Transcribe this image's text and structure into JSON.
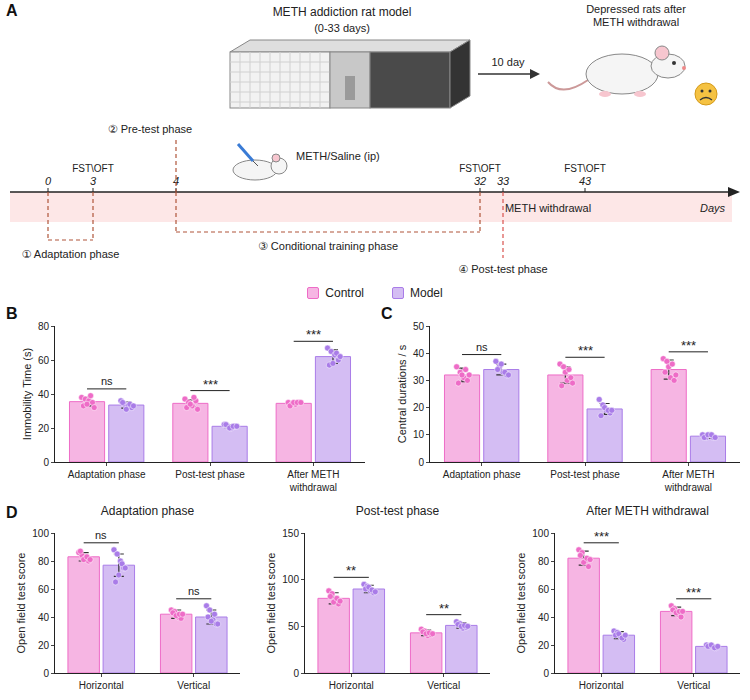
{
  "diagram": {
    "panel": "A",
    "model": {
      "title": "METH addiction rat model",
      "subtitle": "(0-33 days)"
    },
    "transition": "10 day",
    "outcome": "Depressed rats after METH withdrawal",
    "injection": "METH/Saline (ip)",
    "timeline": {
      "unit": "Days",
      "ticks": [
        0,
        3,
        4,
        32,
        33,
        43
      ]
    },
    "tests": [
      {
        "label": "FST\\OFT",
        "day": 3
      },
      {
        "label": "FST\\OFT",
        "day": 32
      },
      {
        "label": "FST\\OFT",
        "day": 43
      }
    ],
    "phases": [
      {
        "label": "① Adaptation phase",
        "from": 0,
        "to": 3
      },
      {
        "label": "② Pre-test phase",
        "from": 4,
        "to": 4
      },
      {
        "label": "③ Conditional training phase",
        "from": 4,
        "to": 32
      },
      {
        "label": "④ Post-test phase",
        "from": 33,
        "to": 33
      },
      {
        "label": "METH withdrawal",
        "from": 33,
        "to": 43
      }
    ]
  },
  "chart_data": [
    {
      "type": "bar",
      "panel": "B",
      "legend": "top",
      "grid": false,
      "y_label": "Immobility Time (s)",
      "categories": [
        "Adaptation phase",
        "Post-test phase",
        "After METH withdrawal"
      ],
      "ylim": [
        0,
        80
      ],
      "yticks": [
        0,
        20,
        40,
        60,
        80
      ],
      "significance": [
        "ns",
        "***",
        "***"
      ],
      "series": [
        {
          "name": "Control",
          "color": "#ee6cc7",
          "values": [
            35.5,
            34.5,
            34.5
          ],
          "errors": [
            2.5,
            2,
            0.8
          ],
          "points": [
            [
              38,
              37,
              36,
              35,
              33,
              34,
              39,
              32
            ],
            [
              37,
              35,
              33,
              36,
              32,
              34,
              38,
              31
            ],
            [
              35,
              34,
              34,
              35,
              33,
              35,
              35,
              35
            ]
          ]
        },
        {
          "name": "Model",
          "color": "#a97ce8",
          "values": [
            33.5,
            21,
            62
          ],
          "errors": [
            1.8,
            0.8,
            4
          ],
          "points": [
            [
              36,
              34,
              33,
              32,
              35,
              31,
              34,
              33
            ],
            [
              22,
              21,
              20,
              21,
              22,
              20,
              21,
              21
            ],
            [
              67,
              65,
              63,
              60,
              57,
              58,
              64,
              62
            ]
          ]
        }
      ]
    },
    {
      "type": "bar",
      "panel": "C",
      "grid": false,
      "y_label": "Central durations / s",
      "categories": [
        "Adaptation phase",
        "Post-test phase",
        "After METH withdrawal"
      ],
      "ylim": [
        0,
        50
      ],
      "yticks": [
        0,
        10,
        20,
        30,
        40,
        50
      ],
      "significance": [
        "ns",
        "***",
        "***"
      ],
      "series": [
        {
          "name": "Control",
          "color": "#ee6cc7",
          "values": [
            32,
            32,
            34
          ],
          "errors": [
            2.5,
            3,
            3.5
          ],
          "points": [
            [
              35,
              33,
              31,
              30,
              29,
              32,
              34,
              32
            ],
            [
              36,
              35,
              30,
              31,
              28,
              33,
              34,
              29
            ],
            [
              38,
              37,
              31,
              30,
              33,
              35,
              36,
              32
            ]
          ]
        },
        {
          "name": "Model",
          "color": "#a97ce8",
          "values": [
            34,
            19.5,
            9.5
          ],
          "errors": [
            2,
            2,
            0.8
          ],
          "points": [
            [
              37,
              35,
              33,
              32,
              34,
              36,
              33,
              32
            ],
            [
              23,
              21,
              19,
              18,
              17,
              20,
              19,
              19
            ],
            [
              10,
              9,
              10,
              9,
              9,
              10,
              10,
              9
            ]
          ]
        }
      ]
    },
    {
      "type": "bar",
      "panel": "D",
      "grid": false,
      "title": "Adaptation phase",
      "y_label": "Open field test score",
      "categories": [
        "Horizontal",
        "Vertical"
      ],
      "ylim": [
        0,
        100
      ],
      "yticks": [
        0,
        20,
        40,
        60,
        80,
        100
      ],
      "significance": [
        "ns",
        "ns"
      ],
      "series": [
        {
          "name": "Control",
          "color": "#ee6cc7",
          "values": [
            83,
            42
          ],
          "errors": [
            3,
            3
          ],
          "points": [
            [
              86,
              84,
              82,
              80,
              87,
              81,
              83,
              81
            ],
            [
              45,
              44,
              40,
              39,
              43,
              41,
              42,
              42
            ]
          ]
        },
        {
          "name": "Model",
          "color": "#a97ce8",
          "values": [
            77,
            40
          ],
          "errors": [
            8,
            5
          ],
          "points": [
            [
              88,
              85,
              80,
              75,
              65,
              70,
              78,
              75
            ],
            [
              48,
              45,
              38,
              35,
              40,
              37,
              42,
              35
            ]
          ]
        }
      ]
    },
    {
      "type": "bar",
      "grid": false,
      "title": "Post-test phase",
      "y_label": "Open field test score",
      "categories": [
        "Horizontal",
        "Vertical"
      ],
      "ylim": [
        0,
        150
      ],
      "yticks": [
        0,
        50,
        100,
        150
      ],
      "significance": [
        "**",
        "**"
      ],
      "series": [
        {
          "name": "Control",
          "color": "#ee6cc7",
          "values": [
            80,
            43
          ],
          "errors": [
            6,
            3
          ],
          "points": [
            [
              88,
              85,
              78,
              74,
              82,
              76,
              80,
              77
            ],
            [
              47,
              45,
              40,
              41,
              44,
              42,
              43,
              42
            ]
          ]
        },
        {
          "name": "Model",
          "color": "#a97ce8",
          "values": [
            90,
            51
          ],
          "errors": [
            4,
            3
          ],
          "points": [
            [
              95,
              93,
              88,
              86,
              90,
              92,
              89,
              87
            ],
            [
              55,
              53,
              48,
              49,
              52,
              50,
              51,
              50
            ]
          ]
        }
      ]
    },
    {
      "type": "bar",
      "grid": false,
      "title": "After METH withdrawal",
      "y_label": "Open field test score",
      "categories": [
        "Horizontal",
        "Vertical"
      ],
      "ylim": [
        0,
        100
      ],
      "yticks": [
        0,
        20,
        40,
        60,
        80,
        100
      ],
      "significance": [
        "***",
        "***"
      ],
      "series": [
        {
          "name": "Control",
          "color": "#ee6cc7",
          "values": [
            82,
            44
          ],
          "errors": [
            5,
            3
          ],
          "points": [
            [
              88,
              86,
              80,
              76,
              84,
              79,
              82,
              81
            ],
            [
              48,
              46,
              42,
              40,
              45,
              43,
              44,
              44
            ]
          ]
        },
        {
          "name": "Model",
          "color": "#a97ce8",
          "values": [
            27,
            19
          ],
          "errors": [
            2.5,
            0.8
          ],
          "points": [
            [
              30,
              29,
              26,
              24,
              27,
              28,
              25,
              27
            ],
            [
              20,
              19,
              19,
              18,
              19,
              20,
              18,
              19
            ]
          ]
        }
      ]
    }
  ]
}
